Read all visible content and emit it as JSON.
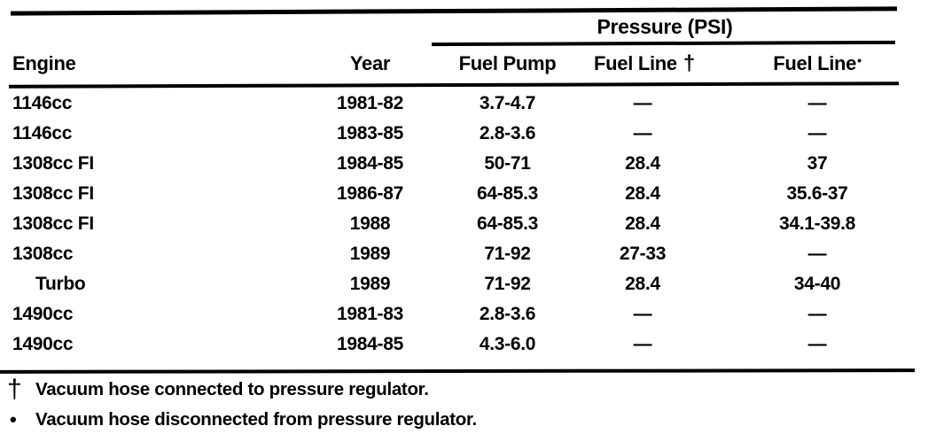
{
  "table": {
    "group_header": "Pressure (PSI)",
    "columns": [
      {
        "label": "Engine"
      },
      {
        "label": "Year"
      },
      {
        "label": "Fuel Pump"
      },
      {
        "label": "Fuel Line",
        "marker": "†"
      },
      {
        "label": "Fuel Line",
        "marker": "•"
      }
    ],
    "rows": [
      [
        "1146cc",
        "1981-82",
        "3.7-4.7",
        "—",
        "—"
      ],
      [
        "1146cc",
        "1983-85",
        "2.8-3.6",
        "—",
        "—"
      ],
      [
        "1308cc FI",
        "1984-85",
        "50-71",
        "28.4",
        "37"
      ],
      [
        "1308cc FI",
        "1986-87",
        "64-85.3",
        "28.4",
        "35.6-37"
      ],
      [
        "1308cc FI",
        "1988",
        "64-85.3",
        "28.4",
        "34.1-39.8"
      ],
      [
        "1308cc",
        "1989",
        "71-92",
        "27-33",
        "—"
      ],
      [
        "Turbo",
        "1989",
        "71-92",
        "28.4",
        "34-40"
      ],
      [
        "1490cc",
        "1981-83",
        "2.8-3.6",
        "—",
        "—"
      ],
      [
        "1490cc",
        "1984-85",
        "4.3-6.0",
        "—",
        "—"
      ]
    ]
  },
  "footnotes": [
    {
      "marker": "†",
      "text": "Vacuum hose connected to pressure regulator."
    },
    {
      "marker": "•",
      "text": "Vacuum hose disconnected from pressure regulator."
    }
  ],
  "colors": {
    "ink": "#000000",
    "paper": "#ffffff"
  }
}
